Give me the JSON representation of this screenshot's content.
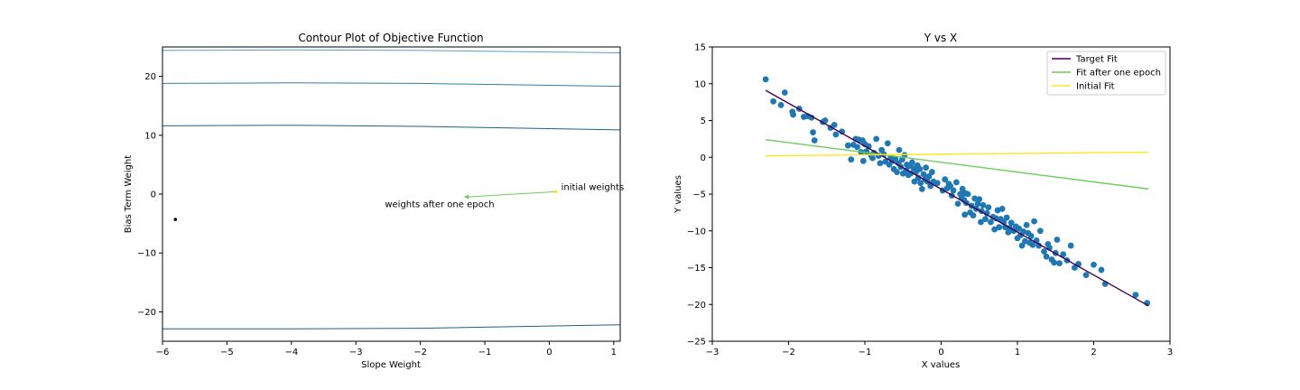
{
  "chart_data": [
    {
      "type": "contour",
      "title": "Contour Plot of Objective Function",
      "xlabel": "Slope Weight",
      "ylabel": "Bias Term Weight",
      "xlim": [
        -6,
        1.1
      ],
      "ylim": [
        -25,
        25
      ],
      "xticks": [
        -6,
        -5,
        -4,
        -3,
        -2,
        -1,
        0,
        1
      ],
      "yticks": [
        -20,
        -10,
        0,
        10,
        20
      ],
      "xtick_labels": [
        "−6",
        "−5",
        "−4",
        "−3",
        "−2",
        "−1",
        "0",
        "1"
      ],
      "ytick_labels": [
        "−20",
        "−10",
        "0",
        "10",
        "20"
      ],
      "grid": false,
      "contour_levels": [
        {
          "color": "#5a9ec6",
          "points": [
            [
              -6,
              24.4
            ],
            [
              -4,
              24.5
            ],
            [
              -2,
              24.4
            ],
            [
              1.1,
              24.0
            ]
          ]
        },
        {
          "color": "#2f7fa6",
          "points": [
            [
              -6,
              18.8
            ],
            [
              -4,
              18.9
            ],
            [
              -2,
              18.8
            ],
            [
              1.1,
              18.3
            ]
          ]
        },
        {
          "color": "#1f5f86",
          "points": [
            [
              -6,
              11.6
            ],
            [
              -4,
              11.7
            ],
            [
              -2,
              11.5
            ],
            [
              1.1,
              10.9
            ]
          ]
        },
        {
          "color": "#1f5f86",
          "points": [
            [
              -6,
              -22.9
            ],
            [
              -4,
              -22.9
            ],
            [
              -2,
              -22.8
            ],
            [
              1.1,
              -22.2
            ]
          ]
        }
      ],
      "points": [
        {
          "name": "initial weights",
          "x": 0.1,
          "y": 0.4,
          "color": "#fde725"
        },
        {
          "name": "weights after one epoch",
          "x": -1.32,
          "y": -0.5,
          "color": "#6ccd5a"
        },
        {
          "name": "",
          "x": -5.8,
          "y": -4.3,
          "color": "#000000"
        }
      ],
      "annotations": [
        {
          "text": "initial weights",
          "x": 0.1,
          "y": 0.4
        },
        {
          "text": "weights after one epoch",
          "x": -2.55,
          "y": -1.6
        }
      ]
    },
    {
      "type": "scatter",
      "title": "Y vs X",
      "xlabel": "X values",
      "ylabel": "Y values",
      "xlim": [
        -3,
        3
      ],
      "ylim": [
        -25,
        15
      ],
      "xticks": [
        -3,
        -2,
        -1,
        0,
        1,
        2,
        3
      ],
      "yticks": [
        -25,
        -20,
        -15,
        -10,
        -5,
        0,
        5,
        10,
        15
      ],
      "xtick_labels": [
        "−3",
        "−2",
        "−1",
        "0",
        "1",
        "2",
        "3"
      ],
      "ytick_labels": [
        "−25",
        "−20",
        "−15",
        "−10",
        "−5",
        "0",
        "5",
        "10",
        "15"
      ],
      "grid": false,
      "legend_position": "top-right",
      "scatter": {
        "color": "#1f77b4",
        "points": [
          [
            -2.3,
            10.6
          ],
          [
            -2.2,
            7.6
          ],
          [
            -2.1,
            7.1
          ],
          [
            -2.05,
            8.8
          ],
          [
            -1.95,
            6.2
          ],
          [
            -1.94,
            5.8
          ],
          [
            -1.86,
            6.6
          ],
          [
            -1.8,
            5.5
          ],
          [
            -1.75,
            5.6
          ],
          [
            -1.7,
            5.4
          ],
          [
            -1.68,
            3.4
          ],
          [
            -1.66,
            2.3
          ],
          [
            -1.55,
            4.8
          ],
          [
            -1.52,
            5.0
          ],
          [
            -1.45,
            4.0
          ],
          [
            -1.4,
            4.4
          ],
          [
            -1.38,
            3.1
          ],
          [
            -1.3,
            3.5
          ],
          [
            -1.22,
            1.6
          ],
          [
            -1.18,
            -0.3
          ],
          [
            -1.15,
            1.7
          ],
          [
            -1.12,
            2.5
          ],
          [
            -1.1,
            1.4
          ],
          [
            -1.08,
            2.4
          ],
          [
            -1.05,
            0.7
          ],
          [
            -1.03,
            2.3
          ],
          [
            -1.02,
            -0.5
          ],
          [
            -1.0,
            1.8
          ],
          [
            -0.98,
            0.8
          ],
          [
            -0.95,
            1.5
          ],
          [
            -0.92,
            0.3
          ],
          [
            -0.9,
            -0.1
          ],
          [
            -0.88,
            0.6
          ],
          [
            -0.85,
            2.5
          ],
          [
            -0.82,
            0.2
          ],
          [
            -0.8,
            -0.8
          ],
          [
            -0.78,
            1.0
          ],
          [
            -0.75,
            0.4
          ],
          [
            -0.73,
            -0.6
          ],
          [
            -0.7,
            1.9
          ],
          [
            -0.68,
            -1.0
          ],
          [
            -0.66,
            0.0
          ],
          [
            -0.64,
            -0.5
          ],
          [
            -0.62,
            -1.6
          ],
          [
            -0.6,
            -0.2
          ],
          [
            -0.58,
            -2.0
          ],
          [
            -0.56,
            -0.8
          ],
          [
            -0.55,
            1.0
          ],
          [
            -0.53,
            -1.3
          ],
          [
            -0.51,
            -0.3
          ],
          [
            -0.5,
            -2.2
          ],
          [
            -0.48,
            0.3
          ],
          [
            -0.46,
            -1.8
          ],
          [
            -0.45,
            -1.0
          ],
          [
            -0.43,
            -2.4
          ],
          [
            -0.42,
            -1.2
          ],
          [
            -0.4,
            -2.2
          ],
          [
            -0.38,
            -0.7
          ],
          [
            -0.36,
            -1.5
          ],
          [
            -0.35,
            -3.3
          ],
          [
            -0.33,
            -2.0
          ],
          [
            -0.31,
            -1.1
          ],
          [
            -0.3,
            -2.8
          ],
          [
            -0.28,
            -1.6
          ],
          [
            -0.27,
            -3.5
          ],
          [
            -0.25,
            -4.3
          ],
          [
            -0.23,
            -2.3
          ],
          [
            -0.21,
            -3.0
          ],
          [
            -0.2,
            -1.4
          ],
          [
            -0.18,
            -3.3
          ],
          [
            -0.16,
            -2.6
          ],
          [
            -0.14,
            -3.9
          ],
          [
            -0.12,
            -2.0
          ],
          [
            -0.1,
            -3.3
          ],
          [
            -0.05,
            -3.5
          ],
          [
            0.02,
            -4.5
          ],
          [
            0.05,
            -3.0
          ],
          [
            0.08,
            -4.2
          ],
          [
            0.1,
            -3.6
          ],
          [
            0.12,
            -3.9
          ],
          [
            0.14,
            -5.2
          ],
          [
            0.16,
            -4.5
          ],
          [
            0.2,
            -3.4
          ],
          [
            0.22,
            -6.3
          ],
          [
            0.25,
            -5.0
          ],
          [
            0.27,
            -5.5
          ],
          [
            0.28,
            -4.3
          ],
          [
            0.3,
            -5.8
          ],
          [
            0.31,
            -7.8
          ],
          [
            0.32,
            -4.9
          ],
          [
            0.33,
            -6.2
          ],
          [
            0.35,
            -5.0
          ],
          [
            0.38,
            -7.5
          ],
          [
            0.4,
            -6.6
          ],
          [
            0.42,
            -7.9
          ],
          [
            0.44,
            -5.6
          ],
          [
            0.46,
            -7.0
          ],
          [
            0.48,
            -6.3
          ],
          [
            0.5,
            -5.7
          ],
          [
            0.52,
            -8.8
          ],
          [
            0.53,
            -7.3
          ],
          [
            0.55,
            -6.5
          ],
          [
            0.58,
            -8.4
          ],
          [
            0.6,
            -7.6
          ],
          [
            0.62,
            -6.8
          ],
          [
            0.65,
            -8.8
          ],
          [
            0.68,
            -8.1
          ],
          [
            0.7,
            -9.8
          ],
          [
            0.72,
            -8.3
          ],
          [
            0.74,
            -7.2
          ],
          [
            0.76,
            -9.5
          ],
          [
            0.78,
            -8.4
          ],
          [
            0.8,
            -7.0
          ],
          [
            0.82,
            -8.8
          ],
          [
            0.84,
            -9.5
          ],
          [
            0.86,
            -8.2
          ],
          [
            0.88,
            -10.2
          ],
          [
            0.9,
            -9.6
          ],
          [
            0.92,
            -8.9
          ],
          [
            0.95,
            -10.0
          ],
          [
            0.98,
            -9.4
          ],
          [
            1.0,
            -11.0
          ],
          [
            1.02,
            -9.7
          ],
          [
            1.04,
            -10.6
          ],
          [
            1.06,
            -12.0
          ],
          [
            1.08,
            -10.1
          ],
          [
            1.1,
            -11.4
          ],
          [
            1.12,
            -9.2
          ],
          [
            1.14,
            -10.3
          ],
          [
            1.16,
            -11.6
          ],
          [
            1.18,
            -10.7
          ],
          [
            1.2,
            -11.9
          ],
          [
            1.22,
            -8.7
          ],
          [
            1.25,
            -11.3
          ],
          [
            1.28,
            -12.0
          ],
          [
            1.3,
            -10.0
          ],
          [
            1.35,
            -12.8
          ],
          [
            1.38,
            -13.5
          ],
          [
            1.4,
            -11.8
          ],
          [
            1.42,
            -12.3
          ],
          [
            1.45,
            -13.9
          ],
          [
            1.48,
            -14.3
          ],
          [
            1.5,
            -13.0
          ],
          [
            1.52,
            -11.2
          ],
          [
            1.55,
            -14.4
          ],
          [
            1.6,
            -13.2
          ],
          [
            1.65,
            -14.0
          ],
          [
            1.7,
            -12.0
          ],
          [
            1.75,
            -15.0
          ],
          [
            1.8,
            -14.5
          ],
          [
            1.9,
            -16.0
          ],
          [
            2.0,
            -14.6
          ],
          [
            2.1,
            -15.3
          ],
          [
            2.15,
            -17.2
          ],
          [
            2.55,
            -18.7
          ],
          [
            2.7,
            -19.8
          ]
        ]
      },
      "series": [
        {
          "name": "Target Fit",
          "color": "#440154",
          "x": [
            -2.3,
            2.72
          ],
          "y": [
            9.1,
            -20.2
          ]
        },
        {
          "name": "Fit after one epoch",
          "color": "#6ccd5a",
          "x": [
            -2.3,
            2.72
          ],
          "y": [
            2.4,
            -4.3
          ]
        },
        {
          "name": "Initial Fit",
          "color": "#fde725",
          "x": [
            -2.3,
            2.72
          ],
          "y": [
            0.2,
            0.7
          ]
        }
      ]
    }
  ]
}
